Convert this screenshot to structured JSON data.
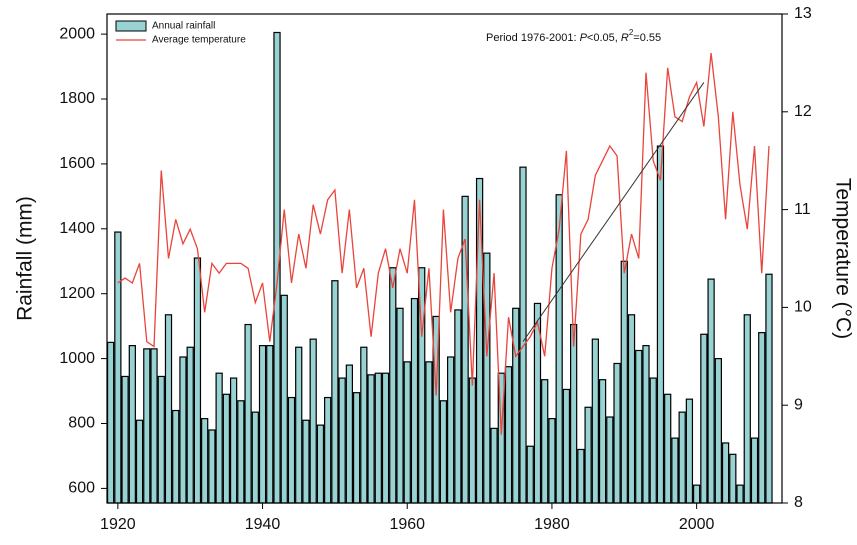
{
  "chart_data": {
    "type": "bar-line",
    "x": [
      1919,
      1920,
      1921,
      1922,
      1923,
      1924,
      1925,
      1926,
      1927,
      1928,
      1929,
      1930,
      1931,
      1932,
      1933,
      1934,
      1935,
      1936,
      1937,
      1938,
      1939,
      1940,
      1941,
      1942,
      1943,
      1944,
      1945,
      1946,
      1947,
      1948,
      1949,
      1950,
      1951,
      1952,
      1953,
      1954,
      1955,
      1956,
      1957,
      1958,
      1959,
      1960,
      1961,
      1962,
      1963,
      1964,
      1965,
      1966,
      1967,
      1968,
      1969,
      1970,
      1971,
      1972,
      1973,
      1974,
      1975,
      1976,
      1977,
      1978,
      1979,
      1980,
      1981,
      1982,
      1983,
      1984,
      1985,
      1986,
      1987,
      1988,
      1989,
      1990,
      1991,
      1992,
      1993,
      1994,
      1995,
      1996,
      1997,
      1998,
      1999,
      2000,
      2001,
      2002,
      2003,
      2004,
      2005,
      2006,
      2007,
      2008,
      2009,
      2010
    ],
    "series": [
      {
        "name": "Annual rainfall",
        "type": "bar",
        "color": "#98d2d3",
        "axis": "y",
        "values": [
          1050,
          1390,
          945,
          1040,
          810,
          1030,
          1030,
          945,
          1135,
          840,
          1005,
          1035,
          1310,
          815,
          780,
          955,
          890,
          940,
          870,
          1105,
          835,
          1040,
          1040,
          2005,
          1195,
          880,
          1035,
          810,
          1060,
          795,
          880,
          1240,
          940,
          980,
          895,
          1035,
          950,
          955,
          955,
          1280,
          1155,
          990,
          1185,
          1280,
          990,
          1130,
          870,
          1005,
          1150,
          1500,
          940,
          1555,
          1325,
          785,
          955,
          975,
          1155,
          1590,
          730,
          1170,
          935,
          815,
          1505,
          905,
          1105,
          720,
          850,
          1060,
          935,
          820,
          985,
          1300,
          1135,
          1025,
          1040,
          940,
          1655,
          890,
          755,
          835,
          875,
          610,
          1075,
          1245,
          1000,
          740,
          705,
          610,
          1135,
          755,
          1080,
          1260
        ]
      },
      {
        "name": "Average temperature",
        "type": "line",
        "color": "#e8453c",
        "axis": "y2",
        "values": [
          null,
          10.25,
          10.3,
          10.25,
          10.45,
          9.65,
          9.6,
          11.4,
          10.5,
          10.9,
          10.65,
          10.8,
          10.6,
          9.95,
          10.45,
          10.35,
          10.45,
          10.45,
          10.45,
          10.4,
          10.05,
          10.25,
          9.65,
          10.25,
          11.0,
          10.25,
          10.75,
          10.4,
          11.05,
          10.75,
          11.1,
          11.2,
          10.35,
          11.0,
          10.2,
          10.4,
          9.7,
          10.35,
          10.6,
          10.2,
          10.6,
          10.35,
          11.1,
          9.7,
          10.4,
          9.1,
          11.0,
          9.95,
          10.5,
          10.7,
          9.2,
          11.1,
          9.5,
          10.35,
          8.7,
          9.9,
          9.5,
          9.6,
          9.7,
          9.85,
          9.5,
          10.4,
          10.8,
          11.6,
          9.6,
          10.75,
          10.9,
          11.35,
          11.5,
          11.65,
          11.55,
          10.35,
          10.75,
          10.5,
          12.4,
          11.5,
          11.3,
          12.45,
          11.95,
          11.9,
          12.15,
          12.3,
          11.85,
          12.6,
          11.95,
          10.9,
          12.0,
          11.25,
          10.8,
          11.65,
          10.35,
          11.65
        ]
      }
    ],
    "trend": {
      "x": [
        1976,
        2001
      ],
      "values": [
        9.65,
        12.3
      ],
      "axis": "y2",
      "color": "#333333"
    },
    "annotation": [
      "Period 1976-2001: ",
      "P",
      "<0.05, ",
      "R",
      "2",
      "=0.55"
    ],
    "ylabel": "Rainfall (mm)",
    "y2label": "Temperature (°C)",
    "xlim": [
      1918.5,
      2011.8
    ],
    "xticks": [
      1920,
      1940,
      1960,
      1980,
      2000
    ],
    "ylim": [
      555,
      2062
    ],
    "yticks": [
      600,
      800,
      1000,
      1200,
      1400,
      1600,
      1800,
      2000
    ],
    "y2lim": [
      8,
      13
    ],
    "y2ticks": [
      8,
      9,
      10,
      11,
      12,
      13
    ],
    "legend": "upper-left"
  }
}
